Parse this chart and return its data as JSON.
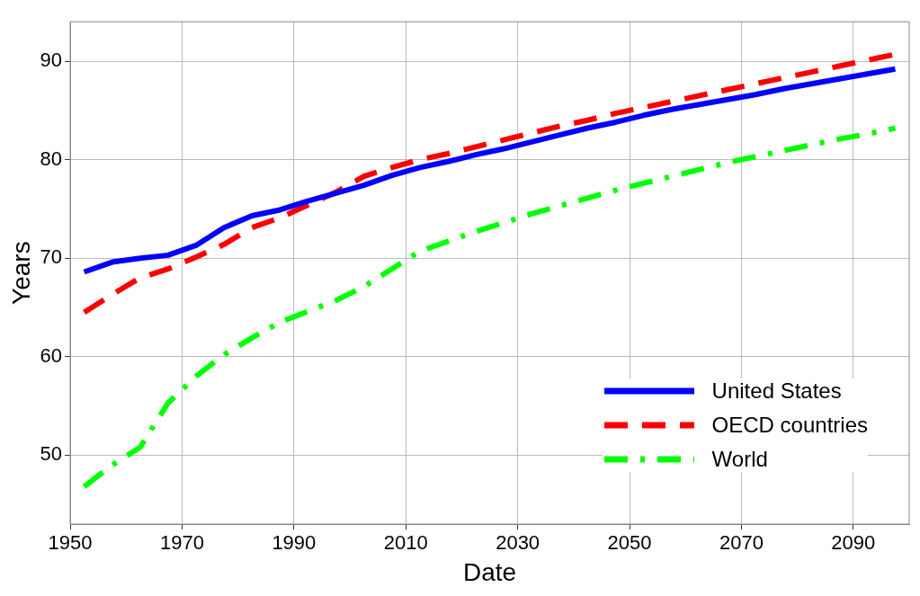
{
  "chart_data": {
    "type": "line",
    "xlabel": "Date",
    "ylabel": "Years",
    "x": [
      1952.5,
      1957.5,
      1962.5,
      1967.5,
      1972.5,
      1977.5,
      1982.5,
      1987.5,
      1992.5,
      1997.5,
      2002.5,
      2007.5,
      2012.5,
      2017.5,
      2022.5,
      2027.5,
      2032.5,
      2037.5,
      2042.5,
      2047.5,
      2052.5,
      2057.5,
      2062.5,
      2067.5,
      2072.5,
      2077.5,
      2082.5,
      2087.5,
      2092.5,
      2097.5
    ],
    "series": [
      {
        "name": "United States",
        "color": "#0000ff",
        "line_style": "solid",
        "values": [
          68.6,
          69.6,
          70.0,
          70.3,
          71.3,
          73.1,
          74.3,
          74.9,
          75.8,
          76.6,
          77.4,
          78.4,
          79.2,
          79.8,
          80.5,
          81.1,
          81.8,
          82.5,
          83.2,
          83.8,
          84.5,
          85.1,
          85.6,
          86.1,
          86.6,
          87.2,
          87.7,
          88.2,
          88.7,
          89.2
        ]
      },
      {
        "name": "OECD countries",
        "color": "#ff0000",
        "line_style": "dashed",
        "values": [
          64.5,
          66.3,
          68.0,
          68.9,
          70.1,
          71.4,
          73.1,
          74.1,
          75.4,
          76.7,
          78.3,
          79.2,
          80.0,
          80.6,
          81.3,
          82.0,
          82.7,
          83.4,
          84.0,
          84.7,
          85.3,
          85.9,
          86.5,
          87.1,
          87.7,
          88.3,
          88.9,
          89.5,
          90.1,
          90.7
        ]
      },
      {
        "name": "World",
        "color": "#00ff00",
        "line_style": "dashdot",
        "values": [
          46.8,
          49.0,
          50.8,
          55.3,
          58.0,
          60.2,
          61.9,
          63.5,
          64.6,
          65.7,
          67.1,
          68.9,
          70.7,
          71.7,
          72.7,
          73.6,
          74.5,
          75.3,
          76.1,
          76.9,
          77.6,
          78.3,
          79.0,
          79.7,
          80.3,
          80.9,
          81.5,
          82.1,
          82.6,
          83.2
        ]
      }
    ],
    "xlim": [
      1950,
      2100
    ],
    "xticks": [
      1950,
      1970,
      1990,
      2010,
      2030,
      2050,
      2070,
      2090
    ],
    "ylim": [
      43,
      94
    ],
    "yticks": [
      50,
      60,
      70,
      80,
      90
    ],
    "grid": true,
    "legend": "bottom right"
  }
}
